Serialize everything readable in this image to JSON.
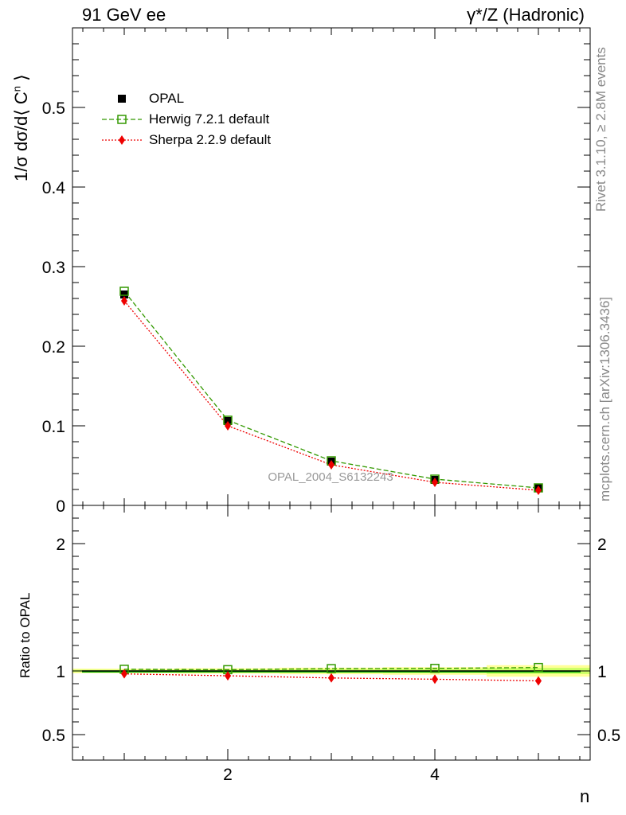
{
  "header": {
    "left_title": "91 GeV ee",
    "right_title": "γ*/Z (Hadronic)"
  },
  "side_text": {
    "rivet": "Rivet 3.1.10, ≥ 2.8M events",
    "mcplots": "mcplots.cern.ch [arXiv:1306.3436]"
  },
  "watermark": "OPAL_2004_S6132243",
  "colors": {
    "opal": "#000000",
    "herwig": "#339900",
    "sherpa": "#ee0000",
    "band_inner": "#ccff66",
    "band_outer": "#ffff99",
    "ref_line": "#00aa00"
  },
  "chart_data": [
    {
      "type": "line",
      "title": "",
      "xlabel": "n",
      "ylabel": "1/σ dσ/d⟨ C^n ⟩",
      "xlim": [
        0.5,
        5.5
      ],
      "ylim": [
        0,
        0.6
      ],
      "x_ticks": [
        2,
        4
      ],
      "x_tick_labels": [
        "2",
        "4"
      ],
      "y_ticks": [
        0,
        0.1,
        0.2,
        0.3,
        0.4,
        0.5
      ],
      "y_tick_labels": [
        "0",
        "0.1",
        "0.2",
        "0.3",
        "0.4",
        "0.5"
      ],
      "x": [
        1,
        2,
        3,
        4,
        5
      ],
      "series": [
        {
          "name": "OPAL",
          "marker": "square-filled",
          "values": [
            0.265,
            0.106,
            0.055,
            0.032,
            0.022
          ]
        },
        {
          "name": "Herwig 7.2.1 default",
          "marker": "square-open",
          "line": "dashed",
          "values": [
            0.269,
            0.107,
            0.056,
            0.033,
            0.022
          ]
        },
        {
          "name": "Sherpa 2.2.9 default",
          "marker": "diamond",
          "line": "dotted",
          "values": [
            0.257,
            0.1,
            0.051,
            0.029,
            0.019
          ]
        }
      ],
      "legend": [
        "OPAL",
        "Herwig 7.2.1 default",
        "Sherpa 2.2.9 default"
      ],
      "legend_position": "top-left"
    },
    {
      "type": "line",
      "title": "",
      "xlabel": "n",
      "ylabel": "Ratio to OPAL",
      "xlim": [
        0.5,
        5.5
      ],
      "ylim": [
        0.3,
        2.3
      ],
      "y_ticks": [
        0.5,
        1,
        2
      ],
      "y_tick_labels": [
        "0.5",
        "1",
        "2"
      ],
      "x": [
        1,
        2,
        3,
        4,
        5
      ],
      "band_halfwidth": [
        0.012,
        0.014,
        0.017,
        0.02,
        0.03
      ],
      "series": [
        {
          "name": "Herwig 7.2.1 default",
          "values": [
            1.013,
            1.01,
            1.018,
            1.02,
            1.027
          ]
        },
        {
          "name": "Sherpa 2.2.9 default",
          "values": [
            0.977,
            0.962,
            0.945,
            0.935,
            0.922
          ]
        }
      ]
    }
  ]
}
